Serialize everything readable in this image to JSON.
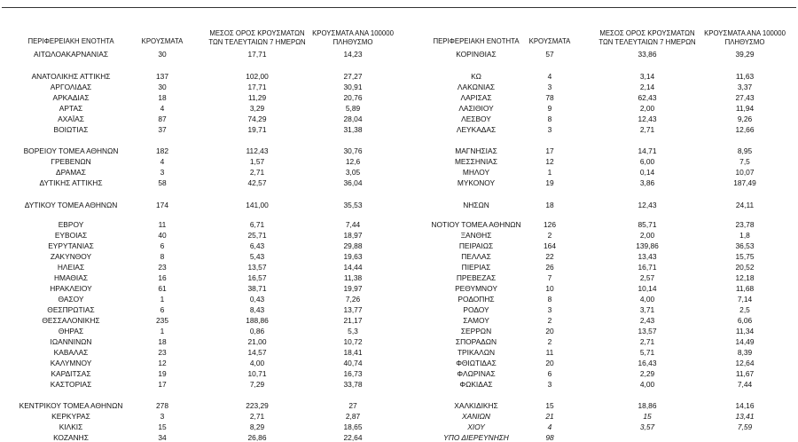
{
  "table": {
    "header": [
      "ΠΕΡΙΦΕΡΕΙΑΚΗ ΕΝΟΤΗΤΑ",
      "ΚΡΟΥΣΜΑΤΑ",
      "ΜΕΣΟΣ ΟΡΟΣ ΚΡΟΥΣΜΑΤΩΝ ΤΩΝ ΤΕΛΕΥΤΑΙΩΝ 7 ΗΜΕΡΩΝ",
      "ΚΡΟΥΣΜΑΤΑ ΑΝΑ 100000 ΠΛΗΘΥΣΜΟ",
      "ΠΕΡΙΦΕΡΕΙΑΚΗ ΕΝΟΤΗΤΑ",
      "ΚΡΟΥΣΜΑΤΑ",
      "ΜΕΣΟΣ ΟΡΟΣ ΚΡΟΥΣΜΑΤΩΝ ΤΩΝ ΤΕΛΕΥΤΑΙΩΝ 7 ΗΜΕΡΩΝ",
      "ΚΡΟΥΣΜΑΤΑ ΑΝΑ 100000 ΠΛΗΘΥΣΜΟ"
    ],
    "rows": [
      [
        "ΑΙΤΩΛΟΑΚΑΡΝΑΝΙΑΣ",
        "30",
        "17,71",
        "14,23",
        "ΚΟΡΙΝΘΙΑΣ",
        "57",
        "33,86",
        "39,29"
      ],
      [
        "ΑΝΑΤΟΛΙΚΗΣ ΑΤΤΙΚΗΣ",
        "137",
        "102,00",
        "27,27",
        "ΚΩ",
        "4",
        "3,14",
        "11,63"
      ],
      [
        "ΑΡΓΟΛΙΔΑΣ",
        "30",
        "17,71",
        "30,91",
        "ΛΑΚΩΝΙΑΣ",
        "3",
        "2,14",
        "3,37"
      ],
      [
        "ΑΡΚΑΔΙΑΣ",
        "18",
        "11,29",
        "20,76",
        "ΛΑΡΙΣΑΣ",
        "78",
        "62,43",
        "27,43"
      ],
      [
        "ΑΡΤΑΣ",
        "4",
        "3,29",
        "5,89",
        "ΛΑΣΙΘΙΟΥ",
        "9",
        "2,00",
        "11,94"
      ],
      [
        "ΑΧΑΪΑΣ",
        "87",
        "74,29",
        "28,04",
        "ΛΕΣΒΟΥ",
        "8",
        "12,43",
        "9,26"
      ],
      [
        "ΒΟΙΩΤΙΑΣ",
        "37",
        "19,71",
        "31,38",
        "ΛΕΥΚΑΔΑΣ",
        "3",
        "2,71",
        "12,66"
      ],
      [
        "ΒΟΡΕΙΟΥ ΤΟΜΕΑ ΑΘΗΝΩΝ",
        "182",
        "112,43",
        "30,76",
        "ΜΑΓΝΗΣΙΑΣ",
        "17",
        "14,71",
        "8,95"
      ],
      [
        "ΓΡΕΒΕΝΩΝ",
        "4",
        "1,57",
        "12,6",
        "ΜΕΣΣΗΝΙΑΣ",
        "12",
        "6,00",
        "7,5"
      ],
      [
        "ΔΡΑΜΑΣ",
        "3",
        "2,71",
        "3,05",
        "ΜΗΛΟΥ",
        "1",
        "0,14",
        "10,07"
      ],
      [
        "ΔΥΤΙΚΗΣ ΑΤΤΙΚΗΣ",
        "58",
        "42,57",
        "36,04",
        "ΜΥΚΟΝΟΥ",
        "19",
        "3,86",
        "187,49"
      ],
      [
        "ΔΥΤΙΚΟΥ ΤΟΜΕΑ ΑΘΗΝΩΝ",
        "174",
        "141,00",
        "35,53",
        "ΝΗΣΩΝ",
        "18",
        "12,43",
        "24,11"
      ],
      [
        "ΕΒΡΟΥ",
        "11",
        "6,71",
        "7,44",
        "ΝΟΤΙΟΥ ΤΟΜΕΑ ΑΘΗΝΩΝ",
        "126",
        "85,71",
        "23,78"
      ],
      [
        "ΕΥΒΟΙΑΣ",
        "40",
        "25,71",
        "18,97",
        "ΞΑΝΘΗΣ",
        "2",
        "2,00",
        "1,8"
      ],
      [
        "ΕΥΡΥΤΑΝΙΑΣ",
        "6",
        "6,43",
        "29,88",
        "ΠΕΙΡΑΙΩΣ",
        "164",
        "139,86",
        "36,53"
      ],
      [
        "ΖΑΚΥΝΘΟΥ",
        "8",
        "5,43",
        "19,63",
        "ΠΕΛΛΑΣ",
        "22",
        "13,43",
        "15,75"
      ],
      [
        "ΗΛΕΙΑΣ",
        "23",
        "13,57",
        "14,44",
        "ΠΙΕΡΙΑΣ",
        "26",
        "16,71",
        "20,52"
      ],
      [
        "ΗΜΑΘΙΑΣ",
        "16",
        "16,57",
        "11,38",
        "ΠΡΕΒΕΖΑΣ",
        "7",
        "2,57",
        "12,18"
      ],
      [
        "ΗΡΑΚΛΕΙΟΥ",
        "61",
        "38,71",
        "19,97",
        "ΡΕΘΥΜΝΟΥ",
        "10",
        "10,14",
        "11,68"
      ],
      [
        "ΘΑΣΟΥ",
        "1",
        "0,43",
        "7,26",
        "ΡΟΔΟΠΗΣ",
        "8",
        "4,00",
        "7,14"
      ],
      [
        "ΘΕΣΠΡΩΤΙΑΣ",
        "6",
        "8,43",
        "13,77",
        "ΡΟΔΟΥ",
        "3",
        "3,71",
        "2,5"
      ],
      [
        "ΘΕΣΣΑΛΟΝΙΚΗΣ",
        "235",
        "188,86",
        "21,17",
        "ΣΑΜΟΥ",
        "2",
        "2,43",
        "6,06"
      ],
      [
        "ΘΗΡΑΣ",
        "1",
        "0,86",
        "5,3",
        "ΣΕΡΡΩΝ",
        "20",
        "13,57",
        "11,34"
      ],
      [
        "ΙΩΑΝΝΙΝΩΝ",
        "18",
        "21,00",
        "10,72",
        "ΣΠΟΡΑΔΩΝ",
        "2",
        "2,71",
        "14,49"
      ],
      [
        "ΚΑΒΑΛΑΣ",
        "23",
        "14,57",
        "18,41",
        "ΤΡΙΚΑΛΩΝ",
        "11",
        "5,71",
        "8,39"
      ],
      [
        "ΚΑΛΥΜΝΟΥ",
        "12",
        "4,00",
        "40,74",
        "ΦΘΙΩΤΙΔΑΣ",
        "20",
        "16,43",
        "12,64"
      ],
      [
        "ΚΑΡΔΙΤΣΑΣ",
        "19",
        "10,71",
        "16,73",
        "ΦΛΩΡΙΝΑΣ",
        "6",
        "2,29",
        "11,67"
      ],
      [
        "ΚΑΣΤΟΡΙΑΣ",
        "17",
        "7,29",
        "33,78",
        "ΦΩΚΙΔΑΣ",
        "3",
        "4,00",
        "7,44"
      ],
      [
        "ΚΕΝΤΡΙΚΟΥ ΤΟΜΕΑ ΑΘΗΝΩΝ",
        "278",
        "223,29",
        "27",
        "ΧΑΛΚΙΔΙΚΗΣ",
        "15",
        "18,86",
        "14,16"
      ],
      [
        "ΚΕΡΚΥΡΑΣ",
        "3",
        "2,71",
        "2,87",
        "ΧΑΝΙΩΝ",
        "21",
        "15",
        "13,41"
      ],
      [
        "ΚΙΛΚΙΣ",
        "15",
        "8,29",
        "18,65",
        "ΧΙΟΥ",
        "4",
        "3,57",
        "7,59"
      ],
      [
        "ΚΟΖΑΝΗΣ",
        "34",
        "26,86",
        "22,64",
        "ΥΠΟ ΔΙΕΡΕΥΝΗΣΗ",
        "98"
      ]
    ]
  }
}
